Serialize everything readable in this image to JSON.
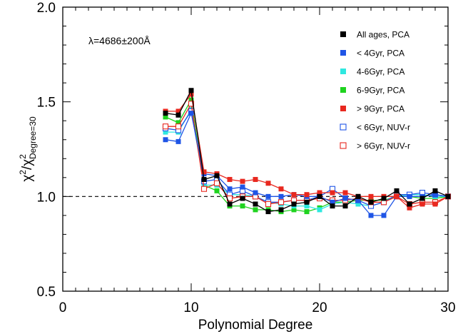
{
  "chart_data": {
    "type": "line",
    "annotation": "λ=4686±200Å",
    "xlabel": "Polynomial Degree",
    "ylabel": {
      "base": "χ",
      "sup": "2",
      "slash": "/",
      "base2": "χ",
      "sup2": "2",
      "sub2": "Degree=30"
    },
    "xlim": [
      0,
      30
    ],
    "ylim": [
      0.5,
      2.0
    ],
    "xticks": [
      0,
      10,
      20,
      30
    ],
    "xtick_labels": [
      "0",
      "10",
      "20",
      "30"
    ],
    "yticks": [
      0.5,
      1.0,
      1.5,
      2.0
    ],
    "ytick_labels": [
      "0.5",
      "1.0",
      "1.5",
      "2.0"
    ],
    "reference_line": 1.0,
    "legend_position": "top-right",
    "x": [
      8,
      9,
      10,
      11,
      12,
      13,
      14,
      15,
      16,
      17,
      18,
      19,
      20,
      21,
      22,
      23,
      24,
      25,
      26,
      27,
      28,
      29,
      30
    ],
    "series": [
      {
        "name": "All ages, PCA",
        "color": "#000000",
        "marker": "filled-square",
        "values": [
          1.44,
          1.43,
          1.56,
          1.09,
          1.11,
          0.96,
          0.99,
          0.96,
          0.92,
          0.93,
          0.96,
          0.97,
          1.0,
          0.95,
          0.95,
          1.0,
          0.97,
          0.99,
          1.03,
          0.96,
          0.99,
          1.03,
          1.0
        ]
      },
      {
        "name": "< 4Gyr, PCA",
        "color": "#1f55e6",
        "marker": "filled-square",
        "values": [
          1.3,
          1.29,
          1.44,
          1.12,
          1.11,
          1.04,
          1.05,
          1.02,
          1.0,
          1.0,
          1.01,
          1.0,
          1.0,
          0.97,
          0.99,
          0.98,
          0.9,
          0.9,
          1.0,
          1.0,
          1.0,
          1.01,
          1.0
        ]
      },
      {
        "name": "4-6Gyr, PCA",
        "color": "#2ee8e0",
        "marker": "filled-square",
        "values": [
          1.34,
          1.34,
          1.46,
          1.06,
          1.06,
          1.01,
          1.01,
          1.0,
          0.97,
          0.96,
          0.95,
          0.95,
          0.93,
          0.96,
          0.97,
          0.96,
          0.95,
          0.97,
          1.0,
          1.01,
          1.01,
          1.0,
          1.0
        ]
      },
      {
        "name": "6-9Gyr, PCA",
        "color": "#1fd31f",
        "marker": "filled-square",
        "values": [
          1.42,
          1.39,
          1.51,
          1.06,
          1.03,
          0.95,
          0.95,
          0.93,
          0.93,
          0.92,
          0.93,
          0.92,
          0.94,
          0.97,
          0.97,
          0.98,
          0.98,
          0.98,
          1.0,
          1.0,
          0.99,
          0.99,
          1.0
        ]
      },
      {
        "name": "> 9Gyr, PCA",
        "color": "#e8281f",
        "marker": "filled-square",
        "values": [
          1.45,
          1.45,
          1.54,
          1.13,
          1.12,
          1.09,
          1.08,
          1.09,
          1.07,
          1.04,
          1.01,
          1.01,
          1.02,
          1.02,
          1.02,
          1.0,
          1.0,
          1.0,
          1.0,
          0.94,
          0.96,
          0.96,
          1.0
        ]
      },
      {
        "name": "< 6Gyr, NUV-r",
        "color": "#1f55e6",
        "marker": "open-square",
        "values": [
          1.36,
          1.35,
          1.45,
          1.08,
          1.09,
          1.01,
          1.03,
          1.0,
          0.97,
          0.97,
          0.98,
          0.98,
          1.0,
          1.04,
          0.99,
          0.98,
          0.95,
          0.97,
          1.01,
          1.01,
          1.02,
          1.01,
          1.0
        ]
      },
      {
        "name": "> 6Gyr, NUV-r",
        "color": "#e8281f",
        "marker": "open-square",
        "values": [
          1.37,
          1.37,
          1.49,
          1.04,
          1.07,
          0.99,
          1.0,
          1.0,
          0.96,
          0.97,
          0.98,
          0.98,
          0.99,
          0.98,
          0.98,
          0.99,
          0.97,
          0.97,
          1.0,
          0.96,
          0.97,
          0.97,
          1.0
        ]
      }
    ]
  }
}
